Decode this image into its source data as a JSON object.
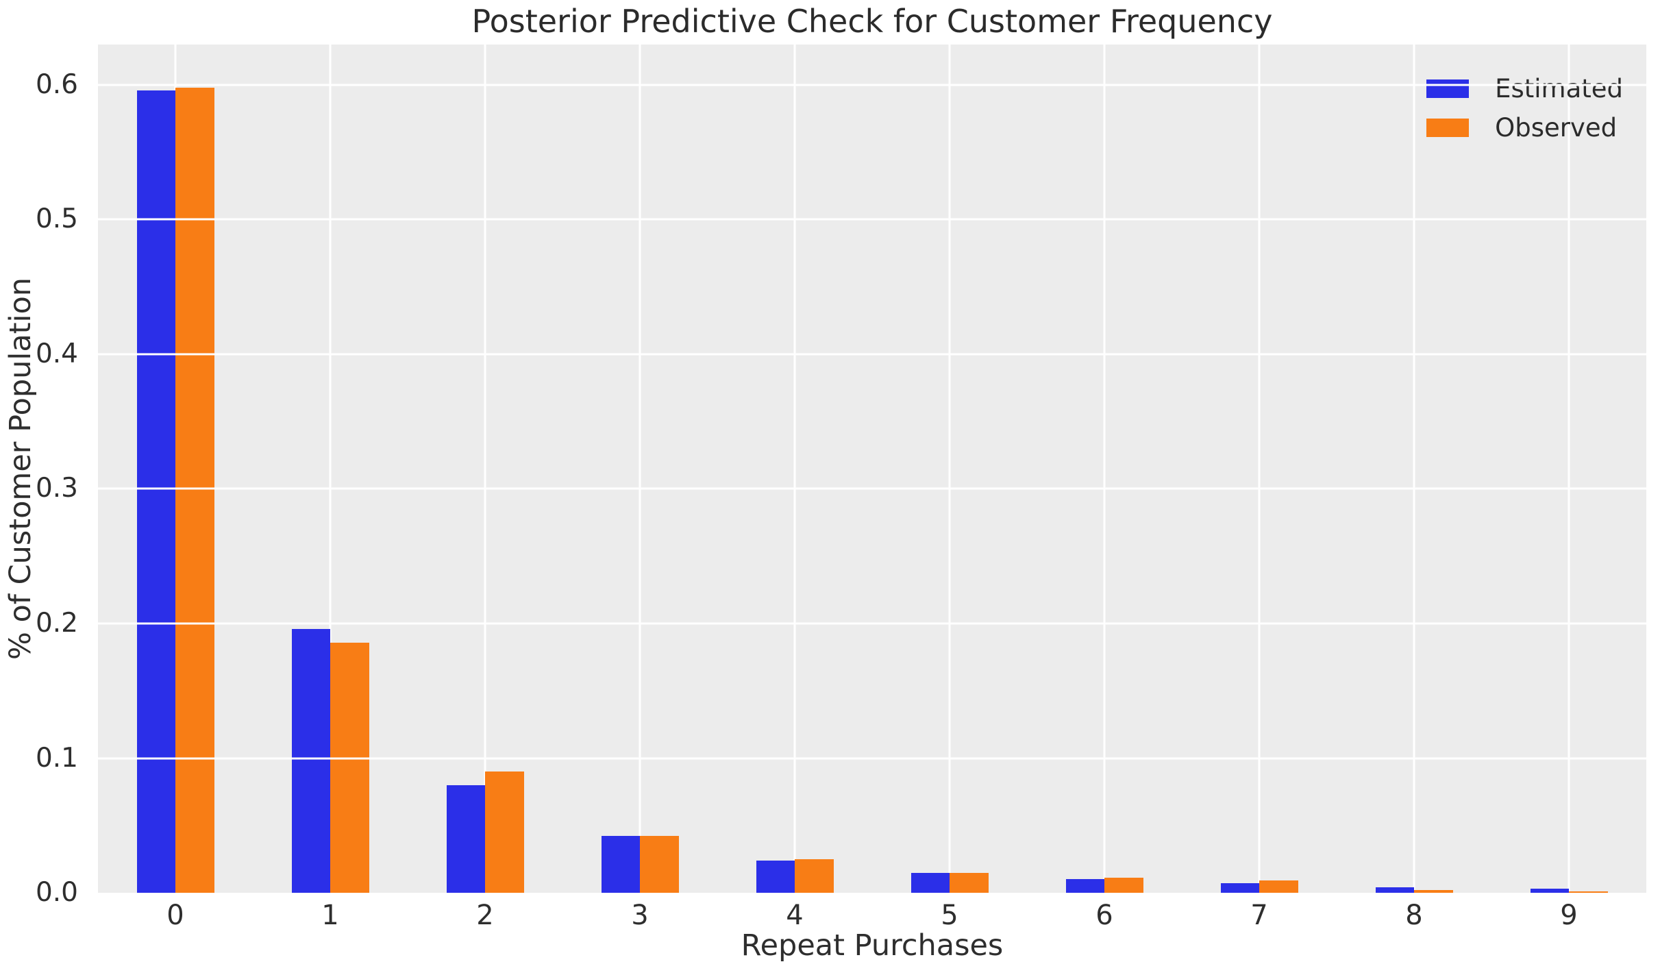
{
  "chart_data": {
    "type": "bar",
    "title": "Posterior Predictive Check for Customer Frequency",
    "xlabel": "Repeat Purchases",
    "ylabel": "% of Customer Population",
    "categories": [
      "0",
      "1",
      "2",
      "3",
      "4",
      "5",
      "6",
      "7",
      "8",
      "9"
    ],
    "series": [
      {
        "name": "Estimated",
        "color": "#2b2fe8",
        "values": [
          0.596,
          0.196,
          0.08,
          0.042,
          0.024,
          0.015,
          0.01,
          0.007,
          0.004,
          0.003
        ]
      },
      {
        "name": "Observed",
        "color": "#f87d15",
        "values": [
          0.598,
          0.186,
          0.09,
          0.042,
          0.025,
          0.015,
          0.011,
          0.009,
          0.002,
          0.001
        ]
      }
    ],
    "ylim": [
      0,
      0.63
    ],
    "yticks": [
      0.0,
      0.1,
      0.2,
      0.3,
      0.4,
      0.5,
      0.6
    ],
    "ytick_labels": [
      "0.0",
      "0.1",
      "0.2",
      "0.3",
      "0.4",
      "0.5",
      "0.6"
    ],
    "grid": "on",
    "legend_position": "upper right",
    "colors": {
      "figure_background": "#ffffff",
      "axes_background": "#ececec",
      "gridline": "#ffffff",
      "text": "#262626"
    }
  }
}
